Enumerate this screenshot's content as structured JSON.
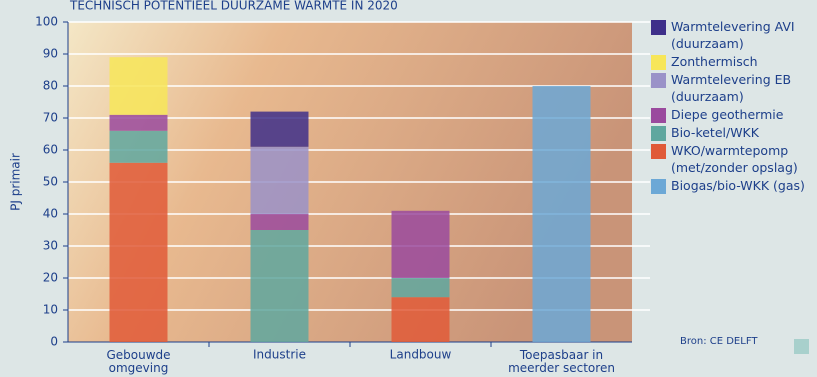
{
  "chart_data": {
    "type": "stacked_bar",
    "title": "TECHNISCH POTENTIEEL DUURZAME WARMTE IN 2020",
    "y_label": "PJ primair",
    "source": "Bron: CE DELFT",
    "categories": [
      "Gebouwde omgeving",
      "Industrie",
      "Landbouw",
      "Toepasbaar in meerder sectoren"
    ],
    "series": [
      {
        "name": "Warmtelevering AVI (duurzaam)",
        "color": "#3e2f8a",
        "values": [
          null,
          11,
          null,
          null
        ]
      },
      {
        "name": "Zonthermisch",
        "color": "#f7e659",
        "values": [
          18,
          null,
          null,
          null
        ]
      },
      {
        "name": "Warmtelevering EB (duurzaam)",
        "color": "#9a92c8",
        "values": [
          null,
          21,
          null,
          null
        ]
      },
      {
        "name": "Diepe geothermie",
        "color": "#9a4a9e",
        "values": [
          5,
          5,
          21,
          null
        ]
      },
      {
        "name": "Bio-ketel/WKK",
        "color": "#5fa79f",
        "values": [
          10,
          35,
          6,
          null
        ]
      },
      {
        "name": "WKO/warmtepomp (met/zonder opslag)",
        "color": "#e05a38",
        "values": [
          56,
          null,
          14,
          null
        ]
      },
      {
        "name": "Biogas/bio-WKK (gas)",
        "color": "#6ca8d6",
        "values": [
          null,
          null,
          null,
          80
        ]
      }
    ],
    "ylim": [
      0,
      100
    ],
    "yticks": [
      0,
      10,
      20,
      30,
      40,
      50,
      60,
      70,
      80,
      90,
      100
    ],
    "grid": true
  }
}
